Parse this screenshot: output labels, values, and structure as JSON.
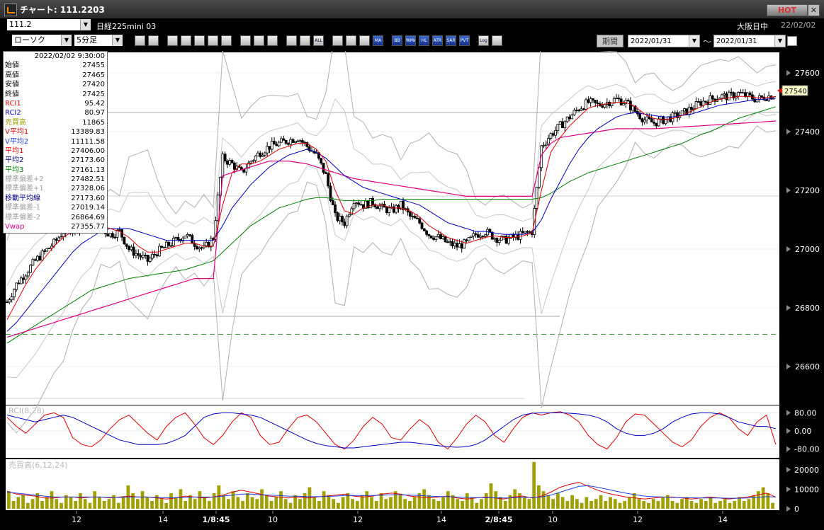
{
  "window": {
    "title": "チャート: 111.2203",
    "hot_label": "HOT",
    "close_label": "✕"
  },
  "symbol_bar": {
    "code": "111.2",
    "name": "日経225mini 03",
    "market": "大阪日中",
    "date": "22/02/02"
  },
  "toolbar": {
    "chart_type": "ローソク",
    "interval": "5分足",
    "buttons": [
      "zoom-icon",
      "crosshair-icon",
      "draw-icon",
      "magnify-icon",
      "range-icon",
      "bar-icon",
      "disabled-icon",
      "trendline-icon",
      "cursor-icon",
      "arrow-icon",
      "period-icon",
      "fit-icon",
      "all-icon",
      "gear-icon",
      "palette-icon",
      "grid-icon",
      "ma-icon",
      "bb-icon",
      "wma-icon",
      "hl-icon",
      "atr-icon",
      "sar-icon",
      "pvt-icon",
      "log-icon",
      "clear-icon"
    ],
    "button_labels": [
      "",
      "",
      "",
      "",
      "",
      "",
      "",
      "",
      "",
      "",
      "",
      "",
      "ALL",
      "",
      "",
      "",
      "MA",
      "BB",
      "WMA",
      "HL",
      "ATR",
      "SAR",
      "PVT",
      "Log",
      ""
    ],
    "period_label": "期間",
    "date_from": "2022/01/31",
    "date_to": "2022/01/31",
    "tilde": "〜"
  },
  "info": {
    "timestamp": "2022/02/02  9:30:00",
    "rows": [
      {
        "label": "始値",
        "value": "27455",
        "color": "#000000"
      },
      {
        "label": "高値",
        "value": "27465",
        "color": "#000000"
      },
      {
        "label": "安値",
        "value": "27420",
        "color": "#000000"
      },
      {
        "label": "終値",
        "value": "27425",
        "color": "#000000"
      },
      {
        "label": "RCI1",
        "value": "95.42",
        "color": "#e00000"
      },
      {
        "label": "RCI2",
        "value": "80.97",
        "color": "#0000c0"
      },
      {
        "label": "売買高",
        "value": "11865",
        "color": "#9a9a00"
      },
      {
        "label": "V平均1",
        "value": "13389.83",
        "color": "#e00000"
      },
      {
        "label": "V平均2",
        "value": "11111.58",
        "color": "#2040e0"
      },
      {
        "label": "平均1",
        "value": "27406.00",
        "color": "#e00000"
      },
      {
        "label": "平均2",
        "value": "27173.60",
        "color": "#000080"
      },
      {
        "label": "平均3",
        "value": "27161.13",
        "color": "#008000"
      },
      {
        "label": "標準偏差+2",
        "value": "27482.51",
        "color": "#a0a0a0"
      },
      {
        "label": "標準偏差+1",
        "value": "27328.06",
        "color": "#a0a0a0"
      },
      {
        "label": "移動平均線",
        "value": "27173.60",
        "color": "#000080"
      },
      {
        "label": "標準偏差-1",
        "value": "27019.14",
        "color": "#a0a0a0"
      },
      {
        "label": "標準偏差-2",
        "value": "26864.69",
        "color": "#a0a0a0"
      },
      {
        "label": "Vwap",
        "value": "27355.77",
        "color": "#e00080"
      }
    ]
  },
  "chart_data": [
    {
      "type": "candlestick",
      "panel": "price",
      "ylim": [
        26470,
        27670
      ],
      "yticks": [
        26600,
        26800,
        27000,
        27200,
        27400,
        27600
      ],
      "last_price": 27540,
      "last_price_label": "27540",
      "x_tick_labels": [
        "12",
        "14",
        "1/8:45",
        "10",
        "12",
        "14",
        "2/8:45",
        "10",
        "12",
        "14"
      ],
      "dashed_level": 26710,
      "closes_key": [
        26820,
        26880,
        26920,
        26960,
        26990,
        27020,
        27060,
        27070,
        27080,
        27090,
        27070,
        27050,
        27060,
        27000,
        26980,
        26960,
        26990,
        27010,
        27030,
        27050,
        27020,
        27000,
        27040,
        27310,
        27290,
        27260,
        27300,
        27330,
        27350,
        27360,
        27370,
        27380,
        27350,
        27320,
        27250,
        27110,
        27090,
        27170,
        27150,
        27160,
        27140,
        27130,
        27150,
        27110,
        27090,
        27050,
        27040,
        27020,
        27010,
        27020,
        27050,
        27060,
        27040,
        27030,
        27040,
        27050,
        27060,
        27350,
        27390,
        27420,
        27450,
        27480,
        27500,
        27490,
        27500,
        27510,
        27500,
        27470,
        27440,
        27430,
        27440,
        27450,
        27460,
        27480,
        27500,
        27510,
        27520,
        27520,
        27530,
        27520,
        27510,
        27520,
        27525
      ],
      "ma1": [
        26760,
        26820,
        26880,
        26930,
        26970,
        27010,
        27040,
        27060,
        27070,
        27080,
        27080,
        27070,
        27060,
        27040,
        27010,
        26990,
        26990,
        27000,
        27010,
        27020,
        27020,
        27010,
        27010,
        27150,
        27260,
        27290,
        27290,
        27300,
        27320,
        27340,
        27350,
        27360,
        27360,
        27340,
        27300,
        27200,
        27130,
        27120,
        27140,
        27150,
        27150,
        27140,
        27140,
        27130,
        27110,
        27080,
        27060,
        27040,
        27030,
        27020,
        27030,
        27040,
        27045,
        27040,
        27040,
        27045,
        27055,
        27200,
        27330,
        27380,
        27420,
        27450,
        27480,
        27490,
        27495,
        27500,
        27500,
        27485,
        27460,
        27445,
        27440,
        27445,
        27455,
        27470,
        27485,
        27500,
        27510,
        27515,
        27520,
        27520,
        27515,
        27515,
        27520
      ],
      "ma2": [
        26720,
        26750,
        26790,
        26830,
        26870,
        26910,
        26950,
        26990,
        27020,
        27040,
        27060,
        27070,
        27070,
        27070,
        27060,
        27050,
        27040,
        27030,
        27030,
        27030,
        27030,
        27030,
        27030,
        27080,
        27140,
        27180,
        27220,
        27250,
        27280,
        27300,
        27320,
        27330,
        27340,
        27330,
        27310,
        27280,
        27250,
        27230,
        27210,
        27200,
        27190,
        27180,
        27170,
        27160,
        27150,
        27130,
        27110,
        27090,
        27080,
        27070,
        27060,
        27060,
        27055,
        27050,
        27050,
        27050,
        27055,
        27100,
        27170,
        27230,
        27290,
        27340,
        27380,
        27410,
        27430,
        27450,
        27460,
        27465,
        27460,
        27455,
        27450,
        27450,
        27455,
        27460,
        27470,
        27480,
        27490,
        27495,
        27500,
        27505,
        27510,
        27510,
        27515
      ],
      "ma3": [
        26680,
        26700,
        26720,
        26740,
        26760,
        26780,
        26800,
        26820,
        26840,
        26860,
        26870,
        26880,
        26890,
        26900,
        26905,
        26910,
        26915,
        26920,
        26925,
        26930,
        26940,
        26950,
        26960,
        26990,
        27020,
        27050,
        27080,
        27100,
        27120,
        27140,
        27150,
        27160,
        27170,
        27175,
        27175,
        27170,
        27165,
        27165,
        27165,
        27165,
        27170,
        27170,
        27170,
        27170,
        27170,
        27170,
        27170,
        27170,
        27170,
        27170,
        27170,
        27170,
        27170,
        27170,
        27170,
        27170,
        27170,
        27175,
        27190,
        27210,
        27230,
        27245,
        27260,
        27270,
        27280,
        27290,
        27300,
        27310,
        27320,
        27330,
        27340,
        27350,
        27360,
        27375,
        27390,
        27400,
        27415,
        27430,
        27445,
        27455,
        27465,
        27475,
        27485
      ],
      "vwap": [
        26700,
        26710,
        26720,
        26730,
        26740,
        26750,
        26760,
        26770,
        26780,
        26790,
        26800,
        26810,
        26820,
        26830,
        26840,
        26850,
        26860,
        26870,
        26880,
        26890,
        26900,
        26900,
        26900,
        27250,
        27260,
        27270,
        27280,
        27290,
        27300,
        27300,
        27300,
        27295,
        27290,
        27280,
        27270,
        27260,
        27250,
        27240,
        27235,
        27230,
        27225,
        27220,
        27215,
        27210,
        27205,
        27200,
        27195,
        27190,
        27185,
        27180,
        27180,
        27180,
        27180,
        27180,
        27180,
        27180,
        27180,
        27320,
        27360,
        27380,
        27385,
        27390,
        27395,
        27400,
        27405,
        27410,
        27410,
        27410,
        27410,
        27410,
        27412,
        27414,
        27416,
        27418,
        27420,
        27422,
        27424,
        27426,
        27428,
        27430,
        27432,
        27434,
        27436
      ]
    },
    {
      "type": "line",
      "panel": "rci",
      "title": "RCI(8,28)",
      "ylim": [
        -100,
        100
      ],
      "yticks": [
        -80,
        0,
        80
      ],
      "ytick_labels": [
        "-80.00",
        "0.00",
        "80.00"
      ],
      "series": [
        {
          "name": "RCI1",
          "color": "#e00000",
          "values": [
            60,
            20,
            -10,
            30,
            70,
            80,
            60,
            -30,
            -60,
            -70,
            -40,
            10,
            50,
            70,
            30,
            -10,
            -40,
            20,
            60,
            80,
            30,
            -30,
            -60,
            -20,
            40,
            80,
            60,
            -20,
            -60,
            -50,
            10,
            60,
            70,
            40,
            -10,
            -60,
            -80,
            -40,
            20,
            60,
            30,
            -30,
            -40,
            10,
            50,
            20,
            -50,
            -80,
            -30,
            30,
            70,
            40,
            -20,
            -50,
            10,
            60,
            80,
            70,
            80,
            85,
            70,
            40,
            -20,
            -60,
            -80,
            -30,
            40,
            75,
            70,
            30,
            -10,
            -50,
            -70,
            -40,
            20,
            60,
            80,
            60,
            10,
            -20,
            40,
            70,
            -60
          ]
        },
        {
          "name": "RCI2",
          "color": "#0000c0",
          "values": [
            70,
            60,
            50,
            40,
            50,
            60,
            70,
            60,
            40,
            20,
            0,
            -20,
            -40,
            -50,
            -60,
            -60,
            -60,
            -55,
            -40,
            -20,
            20,
            60,
            75,
            80,
            80,
            75,
            70,
            60,
            40,
            20,
            0,
            -20,
            -40,
            -55,
            -65,
            -70,
            -75,
            -75,
            -70,
            -65,
            -60,
            -55,
            -50,
            -50,
            -55,
            -60,
            -65,
            -70,
            -72,
            -70,
            -60,
            -40,
            -10,
            20,
            50,
            70,
            78,
            80,
            80,
            80,
            78,
            75,
            70,
            60,
            40,
            10,
            -10,
            -20,
            -20,
            -10,
            10,
            40,
            60,
            75,
            80,
            80,
            75,
            60,
            40,
            30,
            20,
            20,
            10
          ]
        }
      ]
    },
    {
      "type": "bar",
      "panel": "volume",
      "title": "売買高(6,12,24)",
      "ylim": [
        0,
        25000
      ],
      "yticks": [
        0,
        10000,
        20000
      ],
      "ytick_labels": [
        "0",
        "10000",
        "20000"
      ],
      "values": [
        9000,
        4000,
        6000,
        7000,
        3000,
        5000,
        8000,
        4000,
        6000,
        9000,
        5000,
        3000,
        7000,
        6000,
        4000,
        8000,
        5000,
        3000,
        9000,
        6000,
        4000,
        5000,
        7000,
        3000,
        6000,
        12000,
        8000,
        5000,
        9000,
        6000,
        4000,
        7000,
        5000,
        3000,
        8000,
        6000,
        10000,
        4000,
        7000,
        5000,
        9000,
        6000,
        4000,
        8000,
        12000,
        7000,
        5000,
        9000,
        6000,
        4000,
        8000,
        6000,
        5000,
        10000,
        7000,
        4000,
        6000,
        9000,
        5000,
        3000,
        7000,
        5000,
        8000,
        11000,
        6000,
        4000,
        9000,
        7000,
        5000,
        3000,
        6000,
        8000,
        5000,
        4000,
        7000,
        9000,
        6000,
        4000,
        8000,
        5000,
        6000,
        9000,
        7000,
        5000,
        4000,
        6000,
        8000,
        10000,
        7000,
        5000,
        4000,
        6000,
        9000,
        7000,
        5000,
        4000,
        8000,
        6000,
        3000,
        5000,
        8000,
        13000,
        9000,
        6000,
        4000,
        7000,
        10000,
        8000,
        6000,
        5000,
        24000,
        12000,
        9000,
        7000,
        5000,
        8000,
        6000,
        4000,
        7000,
        5000,
        3000,
        6000,
        4000,
        5000,
        7000,
        4000,
        6000,
        5000,
        3000,
        4000,
        6000,
        8000,
        5000,
        4000,
        3000,
        5000,
        4000,
        6000,
        7000,
        4000,
        3000,
        5000,
        6000,
        4000,
        3000,
        5000,
        4000,
        6000,
        3000,
        4000,
        5000,
        3000,
        4000,
        6000,
        4000,
        5000,
        7000,
        9000,
        11000,
        8000,
        3000
      ],
      "series": [
        {
          "name": "V平均1",
          "color": "#e00000",
          "values": [
            9000,
            7500,
            7000,
            6500,
            5500,
            5500,
            6000,
            6000,
            5500,
            6000,
            6000,
            5500,
            6000,
            6500,
            6000,
            6000,
            5500,
            5000,
            5500,
            6500,
            6000,
            5500,
            6000,
            7000,
            8500,
            9500,
            8500,
            7500,
            6500,
            6000,
            5500,
            6000,
            5500,
            6000,
            6500,
            7000,
            7500,
            6500,
            6000,
            6500,
            7500,
            8000,
            7500,
            6500,
            6000,
            5500,
            6000,
            6500,
            5500,
            5000,
            5500,
            6000,
            5500,
            5000,
            6000,
            6500,
            5500,
            6500,
            8500,
            11000,
            12500,
            13500,
            11500,
            9500,
            8000,
            7000,
            6000,
            5500,
            5000,
            5500,
            6000,
            6000,
            5500,
            5000,
            5500,
            6000,
            5500,
            5000,
            5500,
            6000,
            7000,
            8000,
            6000
          ]
        },
        {
          "name": "V平均2",
          "color": "#2040e0",
          "values": [
            8500,
            8000,
            7500,
            7000,
            6500,
            6000,
            6000,
            6000,
            6000,
            6000,
            6000,
            5800,
            5800,
            6000,
            6000,
            6000,
            5800,
            5600,
            5600,
            5800,
            6000,
            6000,
            6000,
            6500,
            7000,
            7500,
            7500,
            7200,
            7000,
            6800,
            6500,
            6400,
            6200,
            6200,
            6300,
            6500,
            6800,
            6800,
            6700,
            6800,
            7000,
            7200,
            7200,
            7000,
            6800,
            6500,
            6300,
            6200,
            6000,
            5800,
            5700,
            5700,
            5600,
            5500,
            5600,
            5800,
            5800,
            6000,
            7000,
            8500,
            10000,
            11500,
            11800,
            11000,
            10000,
            9000,
            8000,
            7200,
            6500,
            6200,
            6000,
            5800,
            5700,
            5600,
            5500,
            5500,
            5500,
            5400,
            5400,
            5500,
            5800,
            6200,
            6000
          ]
        }
      ]
    }
  ]
}
